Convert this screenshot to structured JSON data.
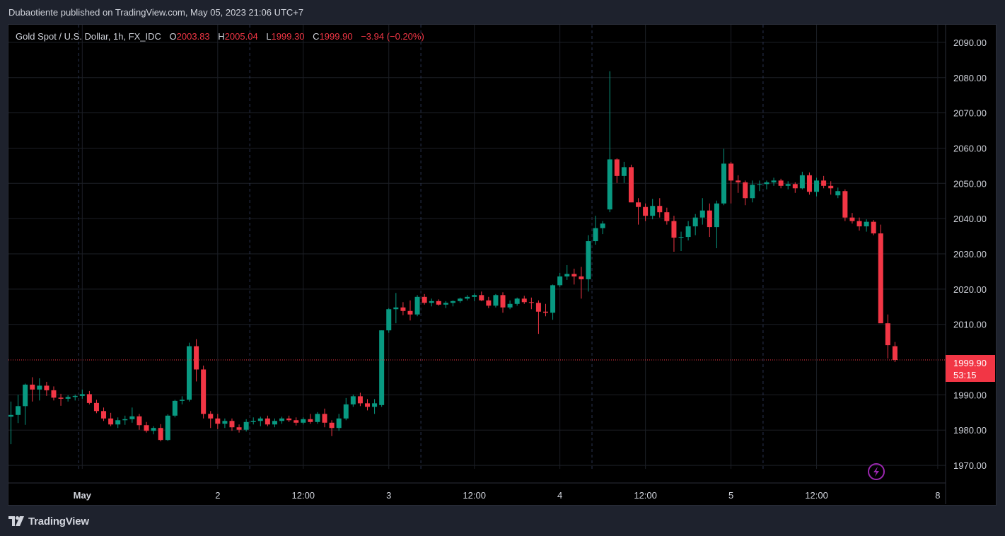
{
  "header": {
    "published_text": "Dubaotiente published on TradingView.com, May 05, 2023 21:06 UTC+7"
  },
  "legend": {
    "symbol": "Gold Spot / U.S. Dollar, 1h, FX_IDC",
    "o_label": "O",
    "o_value": "2003.83",
    "h_label": "H",
    "h_value": "2005.04",
    "l_label": "L",
    "l_value": "1999.30",
    "c_label": "C",
    "c_value": "1999.90",
    "change": "−3.94 (−0.20%)"
  },
  "price_label": {
    "value": "1999.90",
    "countdown": "53:15"
  },
  "footer": {
    "brand": "TradingView"
  },
  "icons": {
    "logo": "tradingview-logo-icon",
    "lightning": "lightning-icon"
  },
  "colors": {
    "up": "#089981",
    "down": "#f23645",
    "background": "#000000",
    "frame": "#1e222d",
    "grid": "#1c1f26",
    "session_line": "#2a3450",
    "accent_purple": "#9c27b0"
  },
  "chart_data": {
    "type": "candlestick",
    "title": "Gold Spot / U.S. Dollar, 1h, FX_IDC",
    "ylim": [
      1965,
      2095
    ],
    "y_ticks": [
      "2090.00",
      "2080.00",
      "2070.00",
      "2060.00",
      "2050.00",
      "2040.00",
      "2030.00",
      "2020.00",
      "2010.00",
      "1990.00",
      "1980.00",
      "1970.00"
    ],
    "x_ticks": [
      "May",
      "2",
      "12:00",
      "3",
      "12:00",
      "4",
      "12:00",
      "5",
      "12:00",
      "8"
    ],
    "x_tick_index": [
      10,
      29,
      41,
      53,
      65,
      77,
      89,
      101,
      113,
      130
    ],
    "bold_x_tick": "May",
    "session_separators": [
      9.5,
      33.5,
      57.5,
      81.5,
      105.5
    ],
    "last_price": 1999.9,
    "candles": [
      [
        1983.8,
        1988.1,
        1976.0,
        1984.3
      ],
      [
        1984.3,
        1990.0,
        1982.0,
        1986.8
      ],
      [
        1986.8,
        1993.2,
        1981.5,
        1992.9
      ],
      [
        1992.9,
        1995.0,
        1988.1,
        1991.5
      ],
      [
        1991.5,
        1994.7,
        1988.4,
        1992.6
      ],
      [
        1992.6,
        1993.7,
        1989.7,
        1991.3
      ],
      [
        1991.3,
        1992.4,
        1988.4,
        1989.2
      ],
      [
        1989.2,
        1990.3,
        1986.9,
        1988.9
      ],
      [
        1988.9,
        1989.9,
        1988.1,
        1989.4
      ],
      [
        1989.4,
        1990.1,
        1988.4,
        1989.7
      ],
      [
        1989.7,
        1991.5,
        1988.9,
        1990.2
      ],
      [
        1990.2,
        1991.1,
        1987.3,
        1987.7
      ],
      [
        1987.7,
        1988.6,
        1984.8,
        1985.4
      ],
      [
        1985.4,
        1986.4,
        1982.6,
        1983.3
      ],
      [
        1983.3,
        1984.9,
        1981.1,
        1981.6
      ],
      [
        1981.6,
        1983.6,
        1980.6,
        1982.8
      ],
      [
        1982.8,
        1984.1,
        1981.5,
        1983.1
      ],
      [
        1983.1,
        1986.4,
        1982.1,
        1983.9
      ],
      [
        1983.9,
        1984.6,
        1980.1,
        1981.4
      ],
      [
        1981.4,
        1982.3,
        1979.3,
        1979.8
      ],
      [
        1979.8,
        1981.1,
        1978.8,
        1980.6
      ],
      [
        1980.6,
        1981.7,
        1976.8,
        1977.2
      ],
      [
        1977.2,
        1984.5,
        1976.9,
        1984.1
      ],
      [
        1984.1,
        1988.6,
        1983.6,
        1988.3
      ],
      [
        1988.3,
        1989.6,
        1987.3,
        1988.6
      ],
      [
        1988.6,
        2004.8,
        1988.1,
        2003.8
      ],
      [
        2003.8,
        2005.8,
        1993.8,
        1997.2
      ],
      [
        1997.2,
        1998.3,
        1983.3,
        1984.6
      ],
      [
        1984.6,
        1985.4,
        1980.6,
        1983.3
      ],
      [
        1983.3,
        1984.6,
        1980.3,
        1981.8
      ],
      [
        1981.8,
        1983.3,
        1980.6,
        1982.6
      ],
      [
        1982.6,
        1983.3,
        1979.8,
        1980.8
      ],
      [
        1980.8,
        1981.6,
        1979.3,
        1980.1
      ],
      [
        1980.1,
        1983.1,
        1979.6,
        1982.3
      ],
      [
        1982.3,
        1983.6,
        1981.6,
        1982.6
      ],
      [
        1982.6,
        1983.8,
        1981.1,
        1983.3
      ],
      [
        1983.3,
        1984.1,
        1981.1,
        1981.6
      ],
      [
        1981.6,
        1983.3,
        1980.8,
        1982.6
      ],
      [
        1982.6,
        1983.8,
        1981.8,
        1983.3
      ],
      [
        1983.3,
        1984.1,
        1982.3,
        1982.8
      ],
      [
        1982.8,
        1983.6,
        1981.3,
        1982.1
      ],
      [
        1982.1,
        1983.6,
        1981.6,
        1983.1
      ],
      [
        1983.1,
        1984.6,
        1981.8,
        1982.3
      ],
      [
        1982.3,
        1985.1,
        1981.8,
        1984.6
      ],
      [
        1984.6,
        1986.1,
        1980.8,
        1982.1
      ],
      [
        1982.1,
        1982.8,
        1978.3,
        1980.6
      ],
      [
        1980.6,
        1984.6,
        1979.8,
        1983.3
      ],
      [
        1983.3,
        1989.1,
        1982.8,
        1987.3
      ],
      [
        1987.3,
        1990.1,
        1986.6,
        1989.6
      ],
      [
        1989.6,
        1990.6,
        1986.8,
        1987.6
      ],
      [
        1987.6,
        1988.8,
        1985.6,
        1986.6
      ],
      [
        1986.6,
        1988.8,
        1984.6,
        1987.6
      ],
      [
        1987.1,
        2008.3,
        1986.6,
        2008.3
      ],
      [
        2008.3,
        2014.6,
        2007.6,
        2014.3
      ],
      [
        2014.3,
        2018.9,
        2010.3,
        2014.8
      ],
      [
        2014.8,
        2016.3,
        2012.6,
        2013.8
      ],
      [
        2013.8,
        2016.8,
        2011.1,
        2012.8
      ],
      [
        2012.8,
        2018.3,
        2012.3,
        2017.8
      ],
      [
        2017.8,
        2018.6,
        2015.6,
        2016.1
      ],
      [
        2016.1,
        2017.3,
        2015.1,
        2016.6
      ],
      [
        2016.6,
        2017.1,
        2015.3,
        2015.6
      ],
      [
        2015.6,
        2016.6,
        2014.6,
        2016.1
      ],
      [
        2016.1,
        2016.8,
        2015.1,
        2016.6
      ],
      [
        2016.6,
        2017.6,
        2016.1,
        2017.3
      ],
      [
        2017.3,
        2018.3,
        2016.8,
        2017.8
      ],
      [
        2017.8,
        2018.8,
        2016.6,
        2018.3
      ],
      [
        2018.3,
        2019.3,
        2016.6,
        2016.8
      ],
      [
        2016.8,
        2017.8,
        2014.6,
        2015.3
      ],
      [
        2015.3,
        2018.6,
        2014.8,
        2018.3
      ],
      [
        2018.3,
        2019.1,
        2013.3,
        2014.8
      ],
      [
        2014.8,
        2016.8,
        2014.3,
        2015.8
      ],
      [
        2015.8,
        2017.6,
        2015.3,
        2017.3
      ],
      [
        2017.3,
        2018.1,
        2015.8,
        2016.3
      ],
      [
        2016.3,
        2017.6,
        2014.3,
        2016.1
      ],
      [
        2016.1,
        2016.8,
        2007.3,
        2013.6
      ],
      [
        2013.6,
        2015.8,
        2012.3,
        2013.3
      ],
      [
        2013.3,
        2021.3,
        2011.3,
        2021.1
      ],
      [
        2021.1,
        2024.6,
        2020.6,
        2023.6
      ],
      [
        2023.6,
        2026.8,
        2022.6,
        2024.3
      ],
      [
        2024.3,
        2025.8,
        2021.3,
        2023.6
      ],
      [
        2023.6,
        2026.3,
        2017.3,
        2022.8
      ],
      [
        2022.8,
        2035.3,
        2019.3,
        2033.6
      ],
      [
        2033.6,
        2040.8,
        2032.6,
        2037.3
      ],
      [
        2037.3,
        2039.3,
        2035.6,
        2038.6
      ],
      [
        2042.6,
        2081.8,
        2041.8,
        2056.8
      ],
      [
        2056.8,
        2057.1,
        2050.1,
        2052.1
      ],
      [
        2052.1,
        2056.1,
        2050.1,
        2054.6
      ],
      [
        2054.6,
        2055.3,
        2044.8,
        2044.6
      ],
      [
        2044.6,
        2045.8,
        2038.3,
        2043.3
      ],
      [
        2043.3,
        2044.3,
        2039.3,
        2040.8
      ],
      [
        2040.8,
        2045.6,
        2039.8,
        2043.6
      ],
      [
        2043.6,
        2045.8,
        2040.3,
        2041.8
      ],
      [
        2041.8,
        2043.1,
        2038.3,
        2039.3
      ],
      [
        2039.3,
        2040.8,
        2030.6,
        2034.6
      ],
      [
        2034.6,
        2036.3,
        2030.8,
        2034.8
      ],
      [
        2034.8,
        2039.3,
        2033.8,
        2037.8
      ],
      [
        2037.8,
        2041.3,
        2035.3,
        2040.3
      ],
      [
        2040.3,
        2045.8,
        2038.3,
        2042.3
      ],
      [
        2042.3,
        2044.3,
        2034.8,
        2037.6
      ],
      [
        2037.6,
        2045.1,
        2031.6,
        2044.3
      ],
      [
        2044.3,
        2059.8,
        2043.8,
        2055.6
      ],
      [
        2055.6,
        2056.1,
        2044.3,
        2050.8
      ],
      [
        2050.8,
        2052.3,
        2047.3,
        2050.3
      ],
      [
        2050.3,
        2050.8,
        2043.8,
        2045.8
      ],
      [
        2045.8,
        2050.8,
        2044.6,
        2049.6
      ],
      [
        2049.6,
        2050.8,
        2047.8,
        2049.8
      ],
      [
        2049.8,
        2050.8,
        2048.3,
        2050.3
      ],
      [
        2050.3,
        2051.6,
        2049.3,
        2050.8
      ],
      [
        2050.8,
        2051.3,
        2048.6,
        2049.3
      ],
      [
        2049.3,
        2050.6,
        2048.3,
        2049.8
      ],
      [
        2049.8,
        2050.3,
        2047.3,
        2048.6
      ],
      [
        2048.6,
        2053.3,
        2048.3,
        2052.3
      ],
      [
        2052.3,
        2053.1,
        2046.8,
        2047.6
      ],
      [
        2047.6,
        2051.6,
        2046.3,
        2050.8
      ],
      [
        2050.8,
        2052.1,
        2048.6,
        2049.3
      ],
      [
        2049.3,
        2050.6,
        2046.8,
        2048.6
      ],
      [
        2046.6,
        2048.8,
        2045.8,
        2047.8
      ],
      [
        2047.8,
        2048.3,
        2039.3,
        2040.3
      ],
      [
        2040.3,
        2041.6,
        2038.6,
        2039.3
      ],
      [
        2039.3,
        2040.3,
        2036.6,
        2037.8
      ],
      [
        2037.8,
        2039.8,
        2036.3,
        2039.1
      ],
      [
        2039.1,
        2039.6,
        2035.3,
        2035.8
      ],
      [
        2035.8,
        2038.3,
        2011.3,
        2010.3
      ],
      [
        2010.3,
        2012.8,
        2000.3,
        2004.1
      ],
      [
        2003.8,
        2005.0,
        1999.3,
        1999.9
      ]
    ]
  }
}
